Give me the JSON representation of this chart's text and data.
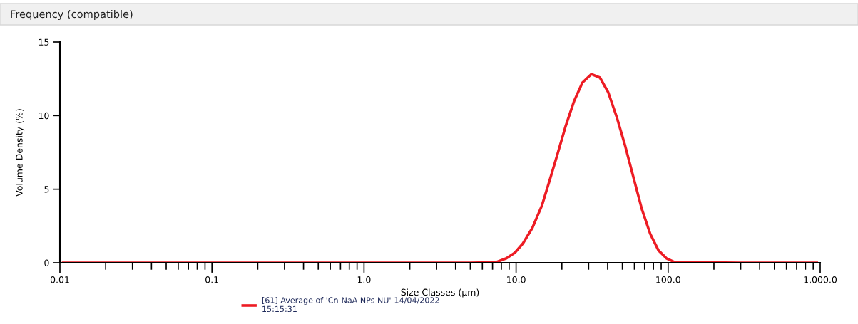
{
  "chart_data": {
    "type": "line",
    "title": "Frequency (compatible)",
    "xlabel": "Size Classes (µm)",
    "ylabel": "Volume Density (%)",
    "log": "x",
    "xlim": [
      0.01,
      1000
    ],
    "ylim": [
      0,
      15
    ],
    "xticks": [
      {
        "value": 0.01,
        "label": "0.01"
      },
      {
        "value": 0.1,
        "label": "0.1"
      },
      {
        "value": 1,
        "label": "1.0"
      },
      {
        "value": 10,
        "label": "10.0"
      },
      {
        "value": 100,
        "label": "100.0"
      },
      {
        "value": 1000,
        "label": "1,000.0"
      }
    ],
    "yticks": [
      0,
      5,
      10,
      15
    ],
    "grid": false,
    "legend": "bottom",
    "marker": "none",
    "line_style": "solid",
    "series": [
      {
        "name": "[61] Average of 'Cn-NaA NPs NU'-14/04/2022\n15:15:31",
        "color": "#ed1c24",
        "x": [
          0.0105,
          0.1,
          1,
          5,
          7.34,
          8.63,
          9.8,
          11.1,
          12.8,
          14.8,
          16.8,
          18.7,
          21.2,
          24.1,
          27.3,
          31.3,
          35.6,
          40.3,
          46.0,
          52.2,
          59.3,
          67.1,
          76.2,
          86.4,
          98.1,
          111,
          300,
          950
        ],
        "values": [
          0,
          0,
          0,
          0,
          0.03,
          0.3,
          0.68,
          1.32,
          2.37,
          3.9,
          5.76,
          7.37,
          9.3,
          11.0,
          12.24,
          12.82,
          12.58,
          11.6,
          9.87,
          7.93,
          5.76,
          3.66,
          1.97,
          0.84,
          0.28,
          0.03,
          0,
          0
        ]
      }
    ]
  }
}
